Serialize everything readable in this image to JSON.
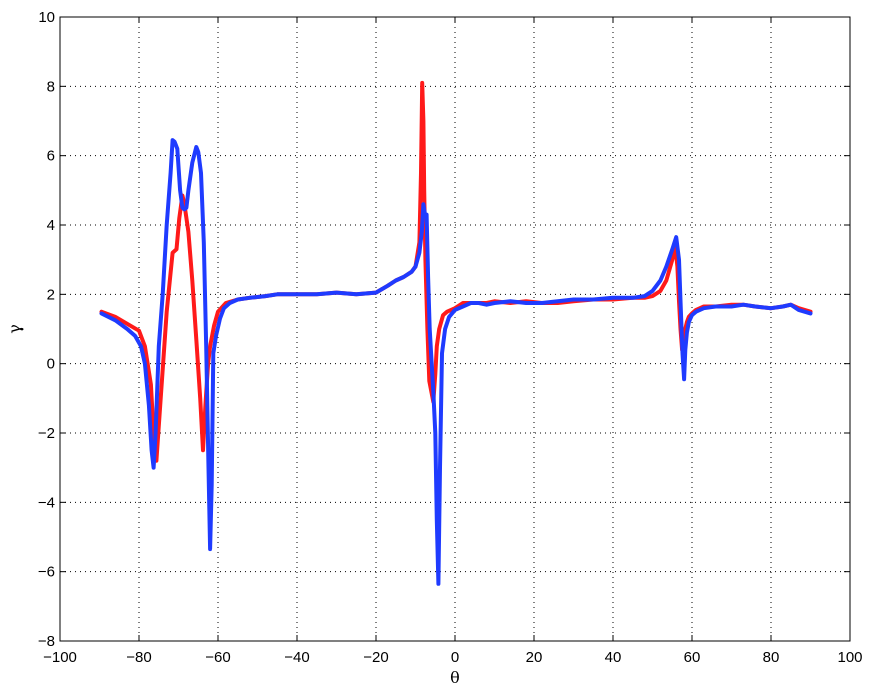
{
  "chart_data": {
    "type": "line",
    "title": "",
    "xlabel": "θ",
    "ylabel": "γ",
    "xlim": [
      -100,
      100
    ],
    "ylim": [
      -8,
      10
    ],
    "xticks": [
      "−100",
      "−80",
      "−60",
      "−40",
      "−20",
      "0",
      "20",
      "40",
      "60",
      "80",
      "100"
    ],
    "xtick_values": [
      -100,
      -80,
      -60,
      -40,
      -20,
      0,
      20,
      40,
      60,
      80,
      100
    ],
    "yticks": [
      "−8",
      "−6",
      "−4",
      "−2",
      "0",
      "2",
      "4",
      "6",
      "8",
      "10"
    ],
    "ytick_values": [
      -8,
      -6,
      -4,
      -2,
      0,
      2,
      4,
      6,
      8,
      10
    ],
    "grid": true,
    "legend": "none",
    "series": [
      {
        "color": "#ff1a1a",
        "x": [
          -89.5,
          -86,
          -83,
          -80,
          -78.5,
          -77,
          -76.4,
          -75.6,
          -74.5,
          -73,
          -71.5,
          -70.5,
          -69.8,
          -69,
          -68.5,
          -67.5,
          -66.5,
          -65.5,
          -64.5,
          -63.8,
          -63.2,
          -62.5,
          -62,
          -61,
          -60,
          -58,
          -55,
          -52,
          -48,
          -45,
          -40,
          -35,
          -30,
          -25,
          -20,
          -17,
          -15,
          -13,
          -11,
          -10,
          -9,
          -8.6,
          -8.3,
          -8,
          -7.8,
          -7.5,
          -7,
          -6.5,
          -6,
          -5.5,
          -5,
          -4.6,
          -4,
          -3,
          -2,
          0,
          2,
          4,
          6,
          8,
          10,
          14,
          18,
          22,
          26,
          30,
          35,
          40,
          45,
          48,
          50,
          52,
          53.5,
          55,
          55.8,
          56.3,
          56.7,
          57.1,
          57.5,
          57.9,
          58.3,
          58.7,
          59.2,
          60,
          61,
          63,
          66,
          70,
          73,
          76,
          80,
          83,
          85,
          87,
          90
        ],
        "y": [
          1.5,
          1.35,
          1.15,
          0.95,
          0.5,
          -0.6,
          -1.8,
          -2.8,
          -1.0,
          1.5,
          3.2,
          3.3,
          4.2,
          4.85,
          4.6,
          3.8,
          2.4,
          0.7,
          -1.0,
          -2.5,
          -1.2,
          0.0,
          0.5,
          1.1,
          1.5,
          1.75,
          1.85,
          1.9,
          1.95,
          2.0,
          2.0,
          2.0,
          2.05,
          2.0,
          2.05,
          2.25,
          2.4,
          2.5,
          2.65,
          2.8,
          3.5,
          5.5,
          8.1,
          7.0,
          5.0,
          3.0,
          1.0,
          -0.5,
          -0.8,
          -1.1,
          -0.3,
          0.5,
          1.0,
          1.4,
          1.5,
          1.6,
          1.75,
          1.75,
          1.75,
          1.75,
          1.8,
          1.75,
          1.8,
          1.75,
          1.75,
          1.8,
          1.85,
          1.85,
          1.9,
          1.9,
          1.95,
          2.1,
          2.4,
          3.0,
          3.35,
          2.8,
          1.8,
          1.0,
          0.4,
          0.7,
          1.0,
          1.2,
          1.35,
          1.45,
          1.55,
          1.65,
          1.65,
          1.7,
          1.7,
          1.65,
          1.6,
          1.65,
          1.7,
          1.6,
          1.5
        ]
      },
      {
        "color": "#1f3bff",
        "x": [
          -89.5,
          -86,
          -83,
          -81,
          -79.5,
          -78.5,
          -77.5,
          -76.8,
          -76.3,
          -75.8,
          -75,
          -74,
          -73,
          -72,
          -71.5,
          -71,
          -70.3,
          -69.6,
          -69,
          -68.5,
          -68,
          -67.5,
          -66.5,
          -65.5,
          -65,
          -64.3,
          -63.6,
          -63,
          -62.4,
          -62,
          -61.6,
          -61.2,
          -60.5,
          -59.5,
          -58.5,
          -57,
          -55,
          -52,
          -48,
          -45,
          -40,
          -35,
          -30,
          -25,
          -20,
          -17,
          -15,
          -13,
          -11,
          -10,
          -9,
          -8.4,
          -8,
          -7.6,
          -7.2,
          -6.8,
          -6.4,
          -6,
          -5.5,
          -5,
          -4.6,
          -4.2,
          -3.8,
          -3.3,
          -2.5,
          -1.5,
          0,
          2,
          4,
          6,
          8,
          10,
          14,
          18,
          22,
          26,
          30,
          35,
          40,
          45,
          48,
          50,
          52,
          53.5,
          55,
          56,
          56.7,
          57.2,
          57.6,
          58,
          58.3,
          58.7,
          59.2,
          60,
          61,
          63,
          66,
          70,
          73,
          76,
          80,
          83,
          85,
          87,
          90
        ],
        "y": [
          1.45,
          1.25,
          1.0,
          0.8,
          0.5,
          0.0,
          -1.2,
          -2.5,
          -3.0,
          -2.0,
          0.5,
          2.0,
          4.0,
          5.5,
          6.45,
          6.4,
          6.2,
          5.0,
          4.5,
          4.45,
          4.5,
          5.0,
          5.8,
          6.25,
          6.1,
          5.5,
          3.5,
          0.5,
          -3.0,
          -5.35,
          -3.5,
          0.3,
          0.8,
          1.3,
          1.6,
          1.75,
          1.85,
          1.9,
          1.95,
          2.0,
          2.0,
          2.0,
          2.05,
          2.0,
          2.05,
          2.25,
          2.4,
          2.5,
          2.65,
          2.8,
          3.2,
          3.8,
          4.6,
          4.3,
          4.3,
          2.5,
          1.0,
          0.2,
          -0.8,
          -2.0,
          -4.5,
          -6.35,
          -3.0,
          0.3,
          1.0,
          1.35,
          1.55,
          1.65,
          1.75,
          1.75,
          1.7,
          1.75,
          1.8,
          1.75,
          1.75,
          1.8,
          1.85,
          1.85,
          1.9,
          1.9,
          1.95,
          2.1,
          2.4,
          2.8,
          3.3,
          3.65,
          3.0,
          1.5,
          0.3,
          -0.45,
          0.4,
          0.9,
          1.2,
          1.4,
          1.5,
          1.6,
          1.65,
          1.65,
          1.7,
          1.65,
          1.6,
          1.65,
          1.7,
          1.55,
          1.45
        ]
      }
    ]
  }
}
